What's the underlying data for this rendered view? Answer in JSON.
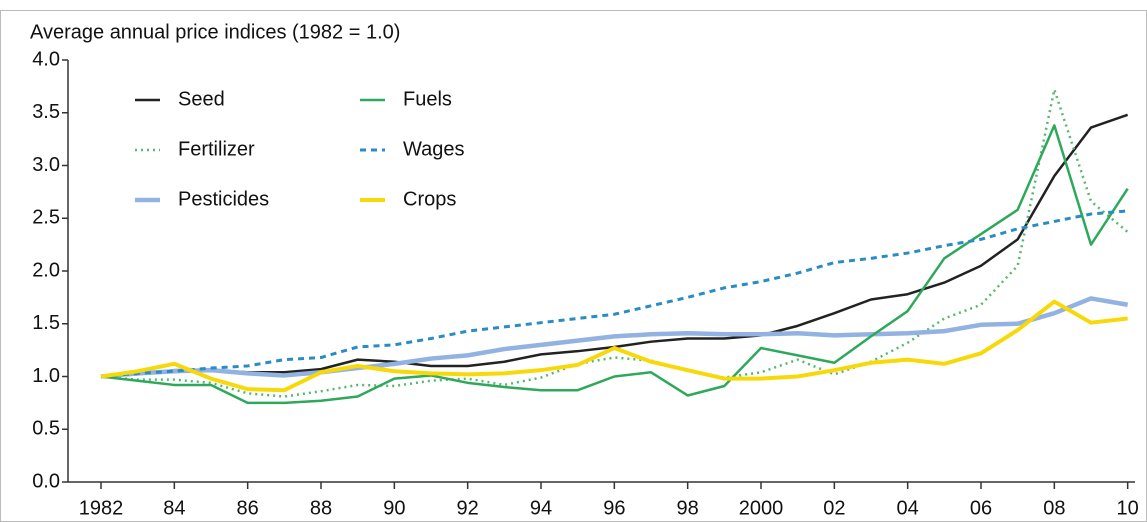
{
  "chart_data": {
    "type": "line",
    "title": "Average annual price indices (1982 = 1.0)",
    "x": [
      1982,
      1983,
      1984,
      1985,
      1986,
      1987,
      1988,
      1989,
      1990,
      1991,
      1992,
      1993,
      1994,
      1995,
      1996,
      1997,
      1998,
      1999,
      2000,
      2001,
      2002,
      2003,
      2004,
      2005,
      2006,
      2007,
      2008,
      2009,
      2010
    ],
    "series": [
      {
        "name": "Seed",
        "color": "#222222",
        "style": "solid",
        "width": 2.5,
        "values": [
          1.0,
          1.02,
          1.06,
          1.06,
          1.04,
          1.04,
          1.07,
          1.16,
          1.14,
          1.1,
          1.1,
          1.14,
          1.21,
          1.24,
          1.28,
          1.33,
          1.36,
          1.36,
          1.39,
          1.48,
          1.6,
          1.73,
          1.78,
          1.89,
          2.05,
          2.3,
          2.9,
          3.36,
          3.48
        ]
      },
      {
        "name": "Fertilizer",
        "color": "#55b86e",
        "style": "dotted",
        "width": 2.5,
        "values": [
          1.0,
          0.97,
          0.97,
          0.94,
          0.84,
          0.81,
          0.86,
          0.92,
          0.91,
          0.96,
          0.98,
          0.92,
          0.99,
          1.12,
          1.18,
          1.15,
          1.06,
          0.99,
          1.04,
          1.16,
          1.02,
          1.14,
          1.32,
          1.55,
          1.68,
          2.05,
          3.72,
          2.66,
          2.37
        ]
      },
      {
        "name": "Pesticides",
        "color": "#92b2e2",
        "style": "solid",
        "width": 4.5,
        "values": [
          1.0,
          1.03,
          1.05,
          1.06,
          1.03,
          1.01,
          1.04,
          1.08,
          1.12,
          1.17,
          1.2,
          1.26,
          1.3,
          1.34,
          1.38,
          1.4,
          1.41,
          1.4,
          1.4,
          1.41,
          1.39,
          1.4,
          1.41,
          1.43,
          1.49,
          1.5,
          1.6,
          1.74,
          1.68
        ]
      },
      {
        "name": "Fuels",
        "color": "#2ea85a",
        "style": "solid",
        "width": 2.5,
        "values": [
          1.0,
          0.96,
          0.92,
          0.92,
          0.75,
          0.75,
          0.77,
          0.81,
          0.98,
          1.01,
          0.94,
          0.9,
          0.87,
          0.87,
          1.0,
          1.04,
          0.82,
          0.91,
          1.27,
          1.2,
          1.13,
          1.38,
          1.62,
          2.12,
          2.35,
          2.58,
          3.38,
          2.25,
          2.78
        ]
      },
      {
        "name": "Wages",
        "color": "#2a8cc4",
        "style": "dashed",
        "width": 3,
        "values": [
          1.0,
          1.03,
          1.05,
          1.08,
          1.1,
          1.16,
          1.18,
          1.28,
          1.3,
          1.36,
          1.43,
          1.47,
          1.51,
          1.55,
          1.59,
          1.67,
          1.75,
          1.84,
          1.9,
          1.98,
          2.08,
          2.12,
          2.17,
          2.24,
          2.3,
          2.4,
          2.47,
          2.54,
          2.57
        ]
      },
      {
        "name": "Crops",
        "color": "#f7d90a",
        "style": "solid",
        "width": 4,
        "values": [
          1.0,
          1.05,
          1.12,
          0.98,
          0.88,
          0.87,
          1.04,
          1.1,
          1.05,
          1.03,
          1.02,
          1.03,
          1.06,
          1.11,
          1.27,
          1.14,
          1.06,
          0.98,
          0.98,
          1.0,
          1.06,
          1.13,
          1.16,
          1.12,
          1.22,
          1.44,
          1.71,
          1.51,
          1.55
        ]
      }
    ],
    "xlim": [
      1981.1,
      2010.2
    ],
    "ylim": [
      0,
      4
    ],
    "xticks": [
      1982,
      {
        "value": 1984,
        "label": "84"
      },
      {
        "value": 1986,
        "label": "86"
      },
      {
        "value": 1988,
        "label": "88"
      },
      {
        "value": 1990,
        "label": "90"
      },
      {
        "value": 1992,
        "label": "92"
      },
      {
        "value": 1994,
        "label": "94"
      },
      {
        "value": 1996,
        "label": "96"
      },
      {
        "value": 1998,
        "label": "98"
      },
      2000,
      {
        "value": 2002,
        "label": "02"
      },
      {
        "value": 2004,
        "label": "04"
      },
      {
        "value": 2006,
        "label": "06"
      },
      {
        "value": 2008,
        "label": "08"
      },
      {
        "value": 2010,
        "label": "10"
      }
    ],
    "yticks": [
      {
        "value": 0,
        "label": "0.0"
      },
      0.5,
      {
        "value": 1,
        "label": "1.0"
      },
      1.5,
      {
        "value": 2,
        "label": "2.0"
      },
      2.5,
      {
        "value": 3,
        "label": "3.0"
      },
      3.5,
      {
        "value": 4,
        "label": "4.0"
      }
    ],
    "legend": "upper left",
    "grid": false
  }
}
